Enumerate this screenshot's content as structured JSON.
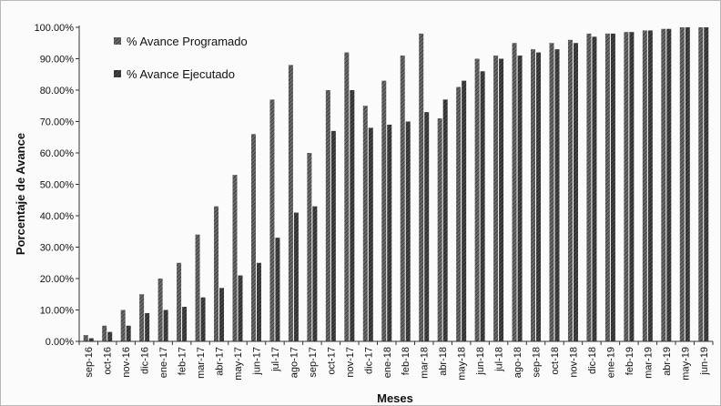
{
  "chart_data": {
    "type": "bar",
    "title": "",
    "xlabel": "Meses",
    "ylabel": "Porcentaje de Avance",
    "ylim": [
      0,
      100
    ],
    "yticks": [
      0,
      10,
      20,
      30,
      40,
      50,
      60,
      70,
      80,
      90,
      100
    ],
    "ytick_format": "percent_2dp",
    "grid": false,
    "legend_position": "top-left",
    "categories": [
      "sep-16",
      "oct-16",
      "nov-16",
      "dic-16",
      "ene-17",
      "feb-17",
      "mar-17",
      "abr-17",
      "may-17",
      "jun-17",
      "jul-17",
      "ago-17",
      "sep-17",
      "oct-17",
      "nov-17",
      "dic-17",
      "ene-18",
      "feb-18",
      "mar-18",
      "abr-18",
      "may-18",
      "jun-18",
      "jul-18",
      "ago-18",
      "sep-18",
      "oct-18",
      "nov-18",
      "dic-18",
      "ene-19",
      "feb-19",
      "mar-19",
      "abr-19",
      "may-19",
      "jun-19"
    ],
    "series": [
      {
        "name": "% Avance Programado",
        "color": "#5a5a5a",
        "values": [
          2,
          5,
          10,
          15,
          20,
          25,
          34,
          43,
          53,
          66,
          77,
          88,
          60,
          80,
          92,
          75,
          83,
          91,
          98,
          71,
          81,
          90,
          91,
          95,
          93,
          95,
          96,
          98,
          98,
          98.5,
          99,
          99.5,
          100,
          100
        ]
      },
      {
        "name": "% Avance Ejecutado",
        "color": "#3a3a3a",
        "values": [
          1,
          3,
          5,
          9,
          10,
          11,
          14,
          17,
          21,
          25,
          33,
          41,
          43,
          67,
          80,
          68,
          69,
          70,
          73,
          77,
          83,
          86,
          90,
          91,
          92,
          93,
          95,
          97,
          98,
          98.5,
          99,
          99.5,
          100,
          100
        ]
      }
    ]
  }
}
